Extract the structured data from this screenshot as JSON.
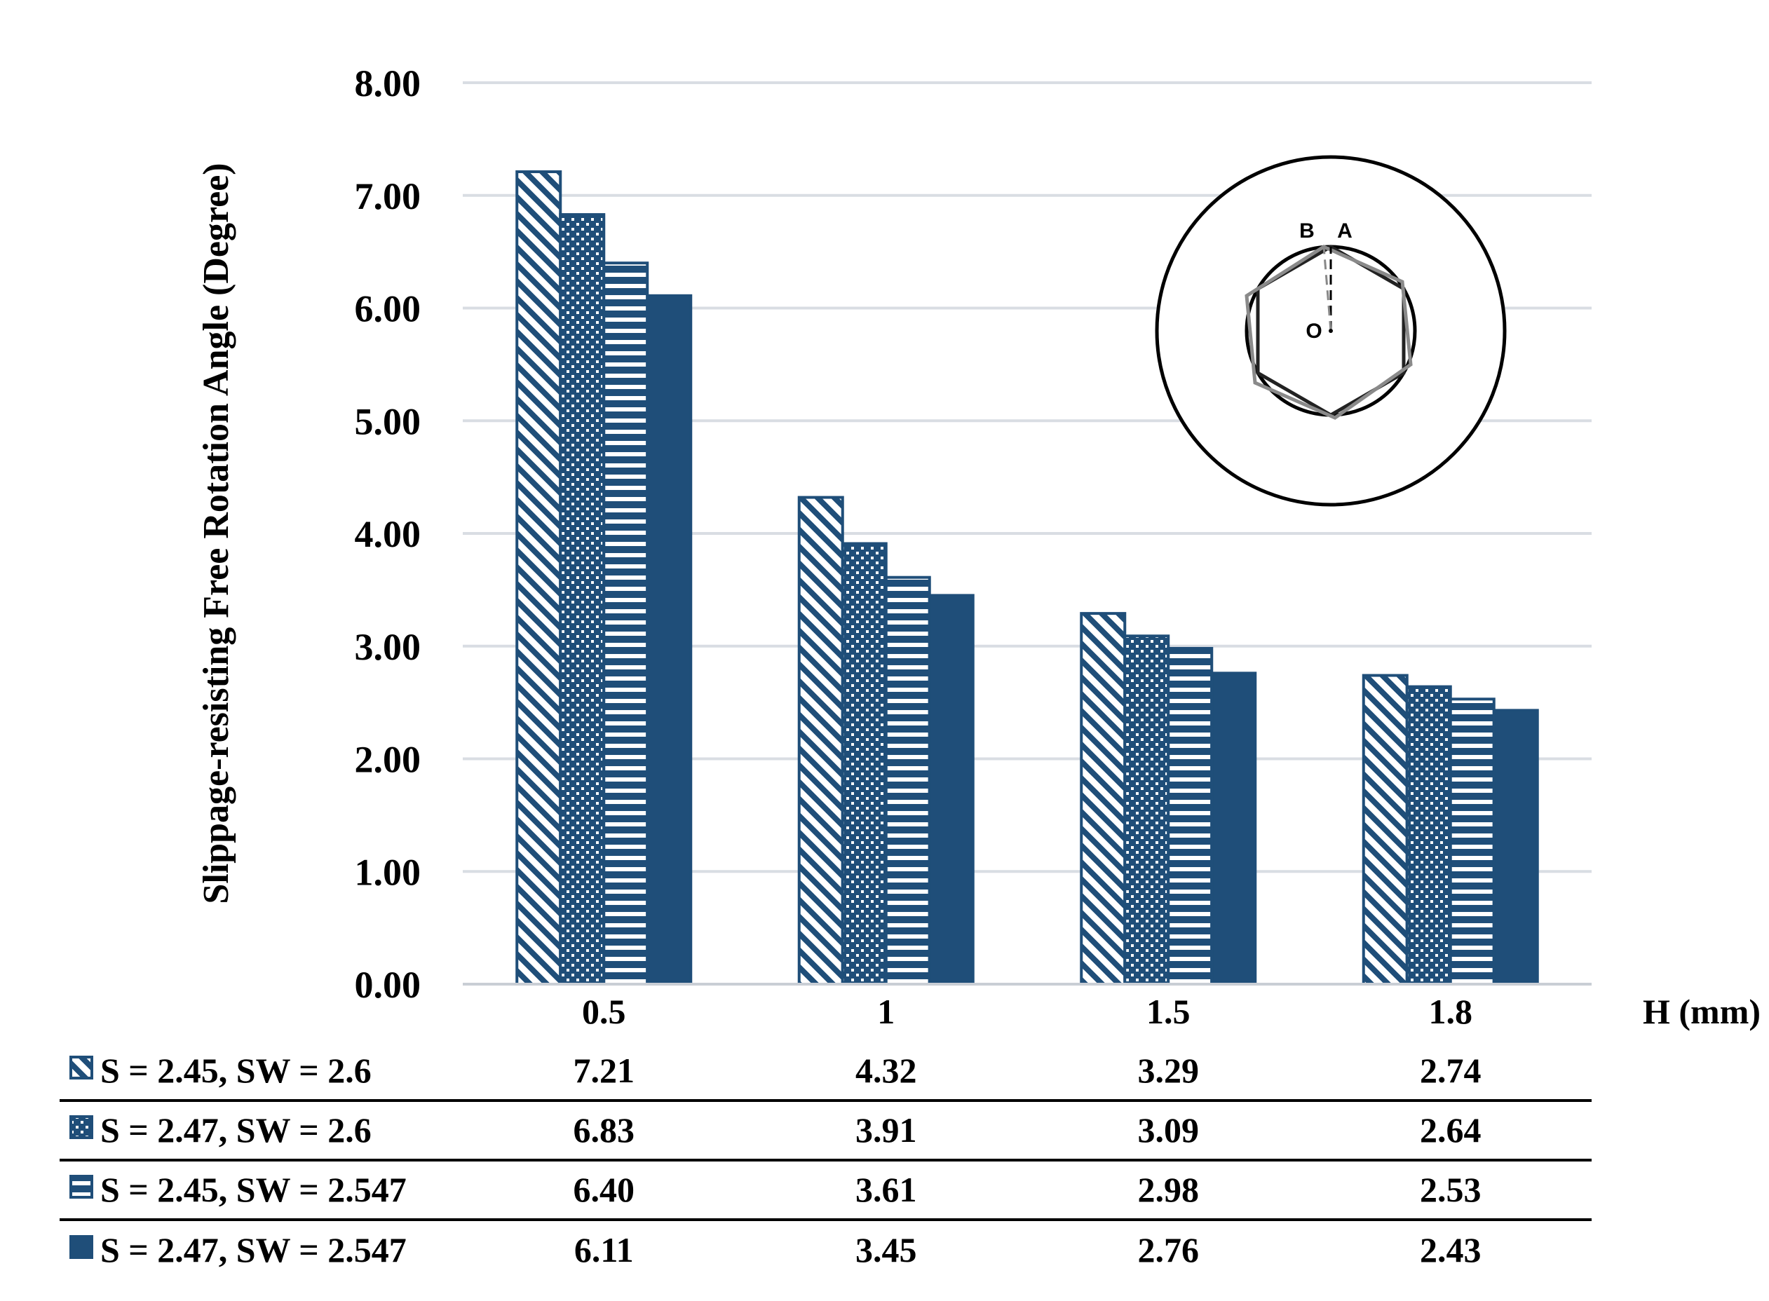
{
  "chart_data": {
    "type": "bar",
    "title": "",
    "ylabel": "Slippage-resisting Free Rotation Angle (Degree)",
    "xlabel": "H (mm)",
    "ylim": [
      0,
      8
    ],
    "yticks": [
      "0.00",
      "1.00",
      "2.00",
      "3.00",
      "4.00",
      "5.00",
      "6.00",
      "7.00",
      "8.00"
    ],
    "grid": true,
    "categories": [
      "0.5",
      "1",
      "1.5",
      "1.8"
    ],
    "series": [
      {
        "name": "S = 2.45, SW = 2.6",
        "pattern": "diagonal",
        "values": [
          7.21,
          4.32,
          3.29,
          2.74
        ],
        "labels": [
          "7.21",
          "4.32",
          "3.29",
          "2.74"
        ]
      },
      {
        "name": "S = 2.47, SW = 2.6",
        "pattern": "dots",
        "values": [
          6.83,
          3.91,
          3.09,
          2.64
        ],
        "labels": [
          "6.83",
          "3.91",
          "3.09",
          "2.64"
        ]
      },
      {
        "name": "S = 2.45, SW = 2.547",
        "pattern": "horizontal",
        "values": [
          6.4,
          3.61,
          2.98,
          2.53
        ],
        "labels": [
          "6.40",
          "3.61",
          "2.98",
          "2.53"
        ]
      },
      {
        "name": "S = 2.47, SW = 2.547",
        "pattern": "solid",
        "values": [
          6.11,
          3.45,
          2.76,
          2.43
        ],
        "labels": [
          "6.11",
          "3.45",
          "2.76",
          "2.43"
        ]
      }
    ],
    "data_table": true,
    "inset": {
      "labels": {
        "b": "B",
        "a": "A",
        "o": "O"
      }
    }
  },
  "colors": {
    "bar": "#1f4e79",
    "grid": "#d9dde3",
    "text": "#000000"
  }
}
